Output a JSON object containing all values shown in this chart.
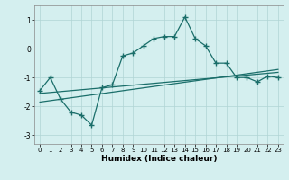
{
  "xlabel": "Humidex (Indice chaleur)",
  "background_color": "#d4efef",
  "grid_color": "#b0d4d4",
  "line_color": "#1a6e6a",
  "xlim": [
    -0.5,
    23.5
  ],
  "ylim": [
    -3.3,
    1.5
  ],
  "yticks": [
    -3,
    -2,
    -1,
    0,
    1
  ],
  "xticks": [
    0,
    1,
    2,
    3,
    4,
    5,
    6,
    7,
    8,
    9,
    10,
    11,
    12,
    13,
    14,
    15,
    16,
    17,
    18,
    19,
    20,
    21,
    22,
    23
  ],
  "main_line_x": [
    0,
    1,
    2,
    3,
    4,
    5,
    6,
    7,
    8,
    9,
    10,
    11,
    12,
    13,
    14,
    15,
    16,
    17,
    18,
    19,
    20,
    21,
    22,
    23
  ],
  "main_line_y": [
    -1.45,
    -1.0,
    -1.75,
    -2.2,
    -2.3,
    -2.65,
    -1.35,
    -1.25,
    -0.25,
    -0.15,
    0.1,
    0.35,
    0.42,
    0.42,
    1.1,
    0.35,
    0.1,
    -0.5,
    -0.5,
    -1.0,
    -1.0,
    -1.15,
    -0.95,
    -1.0
  ],
  "line2_x": [
    0,
    23
  ],
  "line2_y": [
    -1.55,
    -0.82
  ],
  "line3_x": [
    0,
    23
  ],
  "line3_y": [
    -1.85,
    -0.72
  ]
}
